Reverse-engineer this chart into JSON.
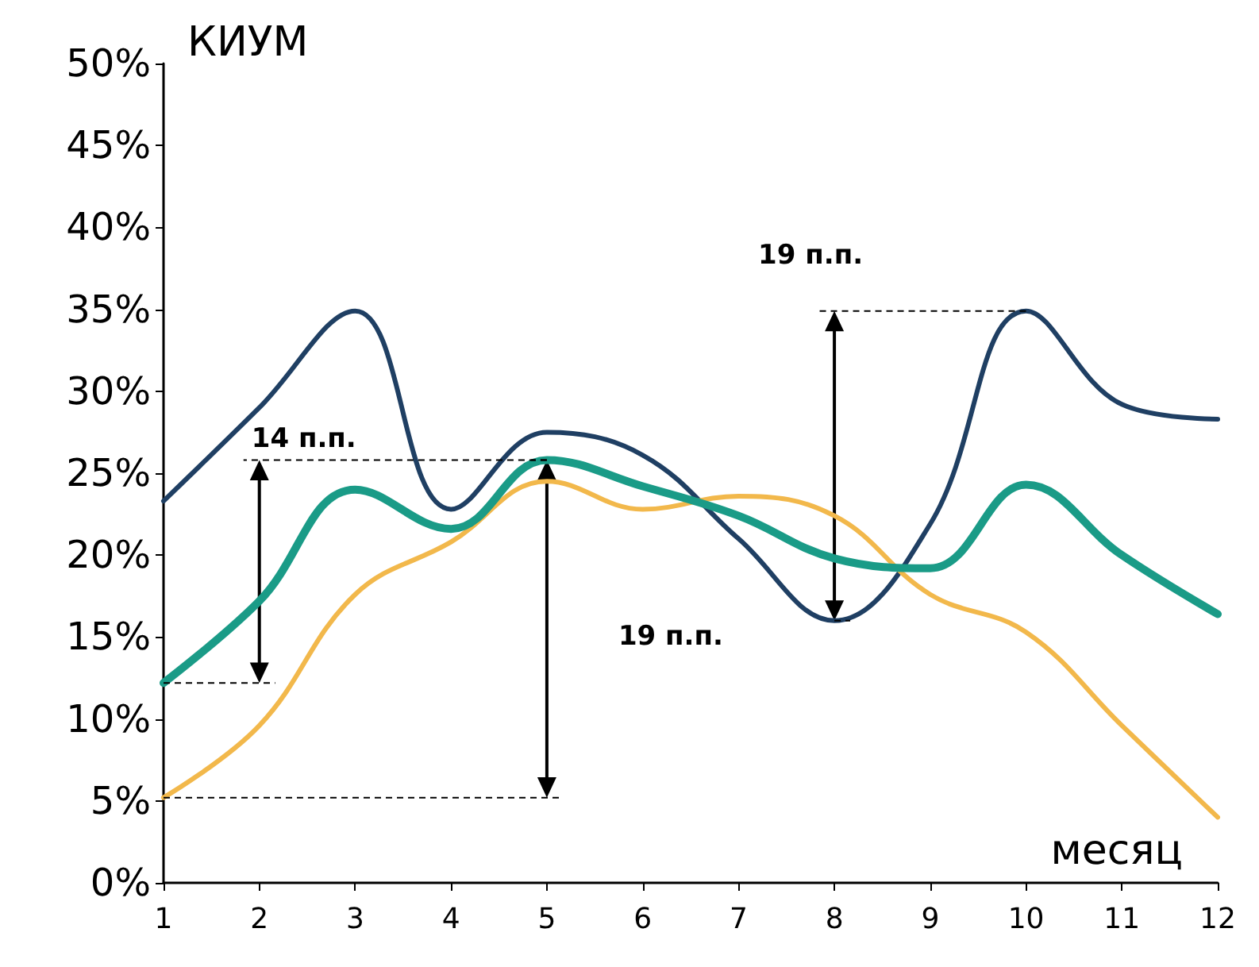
{
  "chart_data": {
    "type": "line",
    "ylabel": "КИУМ",
    "xlabel": "месяц",
    "x": [
      1,
      2,
      3,
      4,
      5,
      6,
      7,
      8,
      9,
      10,
      11,
      12
    ],
    "series": [
      {
        "color": "#1a9b87",
        "values": [
          12.2,
          17.2,
          24,
          21.6,
          25.8,
          24.2,
          22.4,
          19.8,
          19.2,
          24.3,
          20,
          16.4
        ]
      },
      {
        "color": "#f2b84b",
        "values": [
          5.2,
          9.6,
          17.6,
          20.8,
          24.5,
          22.8,
          23.6,
          22.4,
          17.6,
          15.3,
          9.6,
          4
        ]
      },
      {
        "color": "#1f3f63",
        "values": [
          23.3,
          29,
          34.9,
          22.8,
          27.5,
          26.1,
          21,
          16,
          21.9,
          34.9,
          29.2,
          28.3
        ]
      }
    ],
    "xlim": [
      1,
      12
    ],
    "xticks": [
      1,
      2,
      3,
      4,
      5,
      6,
      7,
      8,
      9,
      10,
      11,
      12
    ],
    "ylim": [
      0,
      50
    ],
    "yticks": [
      {
        "value": 0,
        "label": "0%"
      },
      {
        "value": 5,
        "label": "5%"
      },
      {
        "value": 10,
        "label": "10%"
      },
      {
        "value": 15,
        "label": "15%"
      },
      {
        "value": 20,
        "label": "20%"
      },
      {
        "value": 25,
        "label": "25%"
      },
      {
        "value": 30,
        "label": "30%"
      },
      {
        "value": 35,
        "label": "35%"
      },
      {
        "value": 40,
        "label": "40%"
      },
      {
        "value": 45,
        "label": "45%"
      },
      {
        "value": 50,
        "label": "50%"
      }
    ],
    "annotations": [
      {
        "text": "14 п.п.",
        "x": 5,
        "y": 25.8
      },
      "19 п.п.",
      "19 п.п."
    ],
    "grid": false,
    "marker": "none",
    "line_style": "solid"
  }
}
